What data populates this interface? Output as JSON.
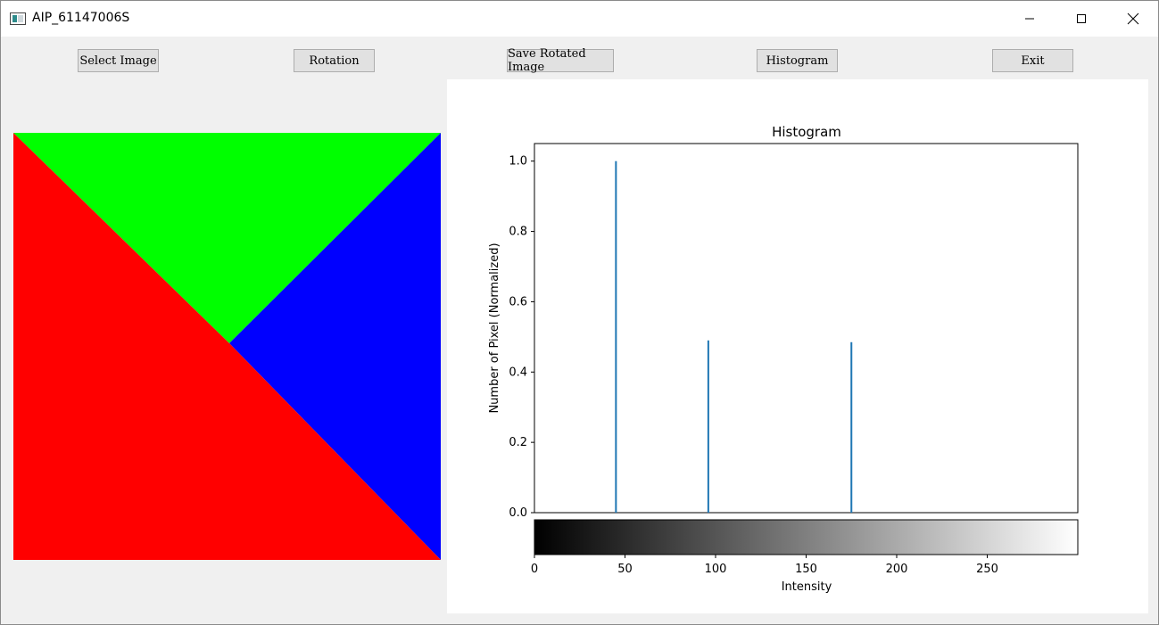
{
  "window": {
    "title": "AIP_61147006S"
  },
  "toolbar": {
    "select_image": "Select Image",
    "rotation": "Rotation",
    "save_rotated": "Save Rotated Image",
    "histogram": "Histogram",
    "exit": "Exit"
  },
  "image_preview": {
    "regions": [
      {
        "name": "green-triangle",
        "color": "#00ff00"
      },
      {
        "name": "blue-triangle",
        "color": "#0000ff"
      },
      {
        "name": "red-triangle",
        "color": "#ff0000"
      }
    ]
  },
  "chart_data": {
    "type": "bar",
    "title": "Histogram",
    "xlabel": "Intensity",
    "ylabel": "Number of Pixel (Normalized)",
    "xlim": [
      0,
      300
    ],
    "ylim": [
      0,
      1.05
    ],
    "x_ticks": [
      0,
      50,
      100,
      150,
      200,
      250
    ],
    "y_ticks": [
      0.0,
      0.2,
      0.4,
      0.6,
      0.8,
      1.0
    ],
    "x_tick_labels": [
      "0",
      "50",
      "100",
      "150",
      "200",
      "250"
    ],
    "y_tick_labels": [
      "0.0",
      "0.2",
      "0.4",
      "0.6",
      "0.8",
      "1.0"
    ],
    "bar_color": "#1f77b4",
    "x": [
      45,
      96,
      175
    ],
    "values": [
      1.0,
      0.49,
      0.485
    ],
    "colorbar": {
      "from": "#000000",
      "to": "#ffffff",
      "range": [
        0,
        300
      ]
    }
  }
}
